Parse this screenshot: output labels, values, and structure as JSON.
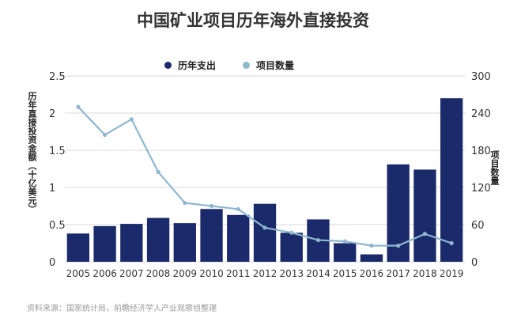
{
  "chart_data": {
    "type": "bar",
    "title": "中国矿业项目历年海外直接投资",
    "ylabel": "历年直接投资金额（十亿美元）",
    "y2label": "项目数量",
    "categories": [
      "2005",
      "2006",
      "2007",
      "2008",
      "2009",
      "2010",
      "2011",
      "2012",
      "2013",
      "2014",
      "2015",
      "2016",
      "2017",
      "2018",
      "2019"
    ],
    "series": [
      {
        "name": "历年支出",
        "axis": "left",
        "type": "bar",
        "color": "#1b2a6b",
        "values": [
          0.38,
          0.48,
          0.51,
          0.59,
          0.52,
          0.71,
          0.63,
          0.78,
          0.39,
          0.57,
          0.25,
          0.1,
          1.31,
          1.24,
          2.2
        ]
      },
      {
        "name": "项目数量",
        "axis": "right",
        "type": "line",
        "color": "#8fb6cf",
        "values": [
          250,
          205,
          230,
          145,
          95,
          90,
          85,
          55,
          47,
          35,
          33,
          26,
          26,
          45,
          30
        ]
      }
    ],
    "ylim": [
      0,
      2.5
    ],
    "yticks": [
      "0",
      "0.5",
      "1",
      "1.5",
      "2",
      "2.5"
    ],
    "y2lim": [
      0,
      300
    ],
    "y2ticks": [
      "0",
      "60",
      "120",
      "180",
      "240",
      "300"
    ],
    "grid": true,
    "legend": "top-center"
  },
  "source": "资料来源：国家统计局，前瞻经济学人产业观察组整理"
}
